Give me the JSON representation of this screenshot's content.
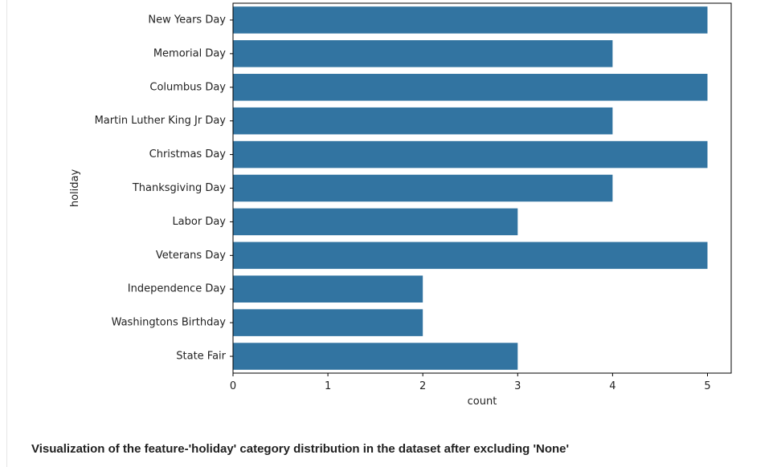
{
  "chart_data": {
    "type": "bar",
    "orientation": "horizontal",
    "categories": [
      "New Years Day",
      "Memorial Day",
      "Columbus Day",
      "Martin Luther King Jr Day",
      "Christmas Day",
      "Thanksgiving Day",
      "Labor Day",
      "Veterans Day",
      "Independence Day",
      "Washingtons Birthday",
      "State Fair"
    ],
    "values": [
      5,
      4,
      5,
      4,
      5,
      4,
      3,
      5,
      2,
      2,
      3
    ],
    "xlabel": "count",
    "ylabel": "holiday",
    "xlim": [
      0,
      5.25
    ],
    "xticks": [
      0,
      1,
      2,
      3,
      4,
      5
    ],
    "grid": false,
    "bar_color": "#3274a1"
  },
  "caption": "Visualization of the feature-'holiday' category distribution in the dataset after excluding 'None'"
}
